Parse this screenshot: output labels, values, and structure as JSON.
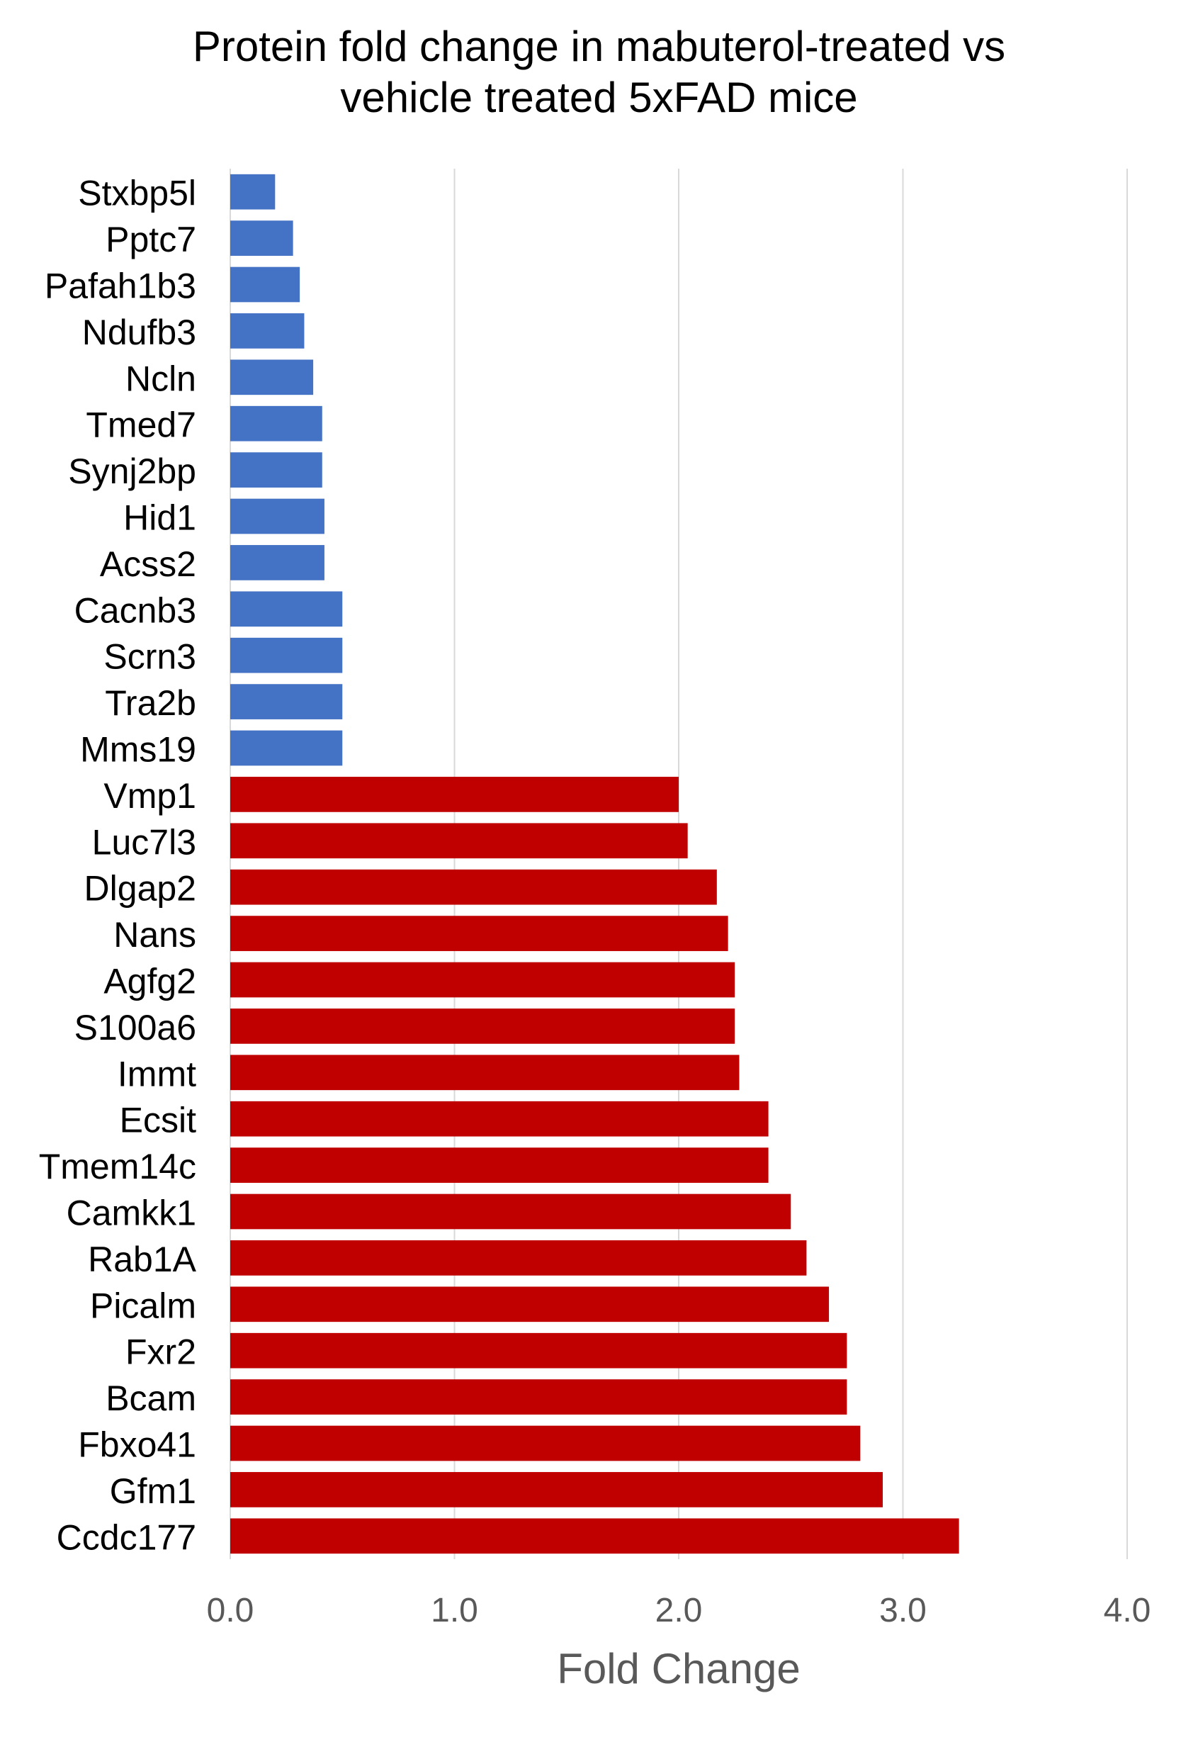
{
  "chart_data": {
    "type": "bar",
    "orientation": "horizontal",
    "title_lines": [
      "Protein fold change in mabuterol-treated vs",
      "vehicle treated 5xFAD mice"
    ],
    "xlabel": "Fold Change",
    "ylabel": "",
    "xlim": [
      0,
      4
    ],
    "x_ticks": [
      "0.0",
      "1.0",
      "2.0",
      "3.0",
      "4.0"
    ],
    "grid": "vertical",
    "legend": "none",
    "categories": [
      "Stxbp5l",
      "Pptc7",
      "Pafah1b3",
      "Ndufb3",
      "Ncln",
      "Tmed7",
      "Synj2bp",
      "Hid1",
      "Acss2",
      "Cacnb3",
      "Scrn3",
      "Tra2b",
      "Mms19",
      "Vmp1",
      "Luc7l3",
      "Dlgap2",
      "Nans",
      "Agfg2",
      "S100a6",
      "Immt",
      "Ecsit",
      "Tmem14c",
      "Camkk1",
      "Rab1A",
      "Picalm",
      "Fxr2",
      "Bcam",
      "Fbxo41",
      "Gfm1",
      "Ccdc177"
    ],
    "values": [
      0.2,
      0.28,
      0.31,
      0.33,
      0.37,
      0.41,
      0.41,
      0.42,
      0.42,
      0.5,
      0.5,
      0.5,
      0.5,
      2.0,
      2.04,
      2.17,
      2.22,
      2.25,
      2.25,
      2.27,
      2.4,
      2.4,
      2.5,
      2.57,
      2.67,
      2.75,
      2.75,
      2.81,
      2.91,
      3.25
    ],
    "bar_colors": {
      "decreased": "#4472c4",
      "increased": "#c00000"
    },
    "decreased_count": 13
  }
}
